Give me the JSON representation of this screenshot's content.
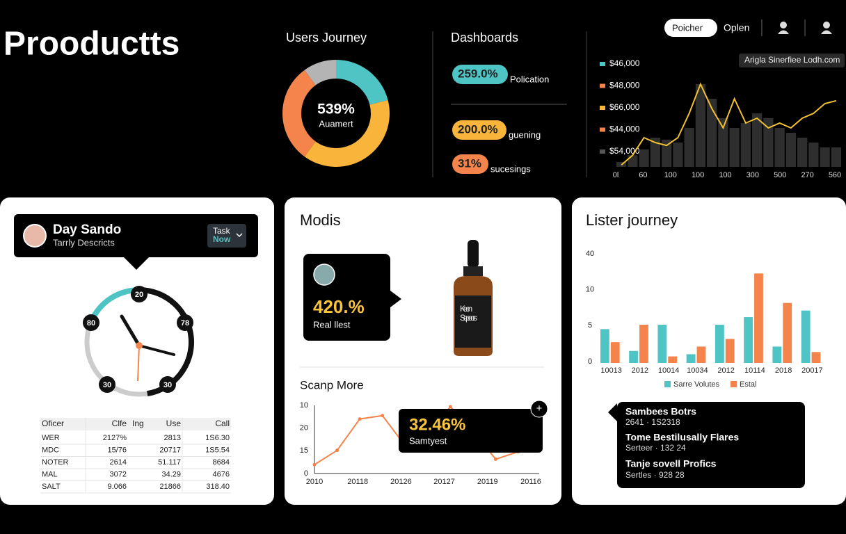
{
  "header": {
    "title": "Prooductts",
    "button": "Poicher",
    "link": "Oplen"
  },
  "donut": {
    "title": "Users Journey",
    "center_value": "539%",
    "center_label": "Auamert",
    "segments": [
      {
        "value": 21,
        "color": "#4fc4c4"
      },
      {
        "value": 39,
        "color": "#f9b43c"
      },
      {
        "value": 30,
        "color": "#f4844c"
      },
      {
        "value": 10,
        "color": "#b4b4b4"
      }
    ]
  },
  "dashboards": {
    "title": "Dashboards",
    "items": [
      {
        "value": "259.0%",
        "label": "Polication",
        "color": "#4fc4c4"
      },
      {
        "value": "200.0%",
        "label": "guening",
        "color": "#f9b43c"
      },
      {
        "value": "31%",
        "label": "sucesings",
        "color": "#f4844c"
      }
    ]
  },
  "top_chart": {
    "badge": "Arigla Sinerfiee Lodh.com",
    "legend": [
      {
        "label": "$46,000",
        "color": "#4fc4c4"
      },
      {
        "label": "$48,000",
        "color": "#f4844c"
      },
      {
        "label": "$66,000",
        "color": "#f9b43c"
      },
      {
        "label": "$44,000",
        "color": "#f4844c"
      },
      {
        "label": "$54,000",
        "color": "#555555"
      }
    ],
    "x_labels": [
      "0l",
      "60",
      "100",
      "100",
      "100",
      "300",
      "500",
      "270",
      "560"
    ],
    "ylim": [
      0,
      100
    ],
    "bars": [
      5,
      12,
      18,
      30,
      28,
      25,
      40,
      85,
      70,
      50,
      40,
      45,
      55,
      50,
      40,
      35,
      30,
      25,
      20,
      20
    ],
    "line": [
      2,
      12,
      30,
      25,
      22,
      30,
      55,
      85,
      60,
      40,
      70,
      45,
      50,
      40,
      45,
      40,
      50,
      55,
      65,
      68
    ]
  },
  "profile_card": {
    "name": "Day Sando",
    "subtitle": "Tarrly Descricts",
    "task": "Task",
    "status": "Now",
    "clock_labels": [
      "20",
      "80",
      "78",
      "30",
      "30"
    ],
    "table": {
      "headers": [
        "Oficer",
        "Clfe",
        "Ing",
        "Use",
        "Call"
      ],
      "rows": [
        [
          "WER",
          "2127%",
          "2813",
          "1S6.30"
        ],
        [
          "MDC",
          "15/76",
          "20717",
          "1S5.54"
        ],
        [
          "NOTER",
          "2614",
          "51.117",
          "8684"
        ],
        [
          "MAL",
          "3072",
          "34.29",
          "4676"
        ],
        [
          "SALT",
          "9.066",
          "21866",
          "318.40"
        ]
      ]
    }
  },
  "modis_card": {
    "title": "Modis",
    "metric": "420.%",
    "metric_label": "Real llest",
    "product_label": "Keen Sepoors",
    "chart": {
      "title": "Scanp More",
      "y_labels": [
        "10",
        "20",
        "15",
        "0"
      ],
      "x_labels": [
        "2010",
        "20118",
        "20126",
        "20127",
        "20119",
        "20116"
      ],
      "ylim": [
        0,
        100
      ],
      "values": [
        13,
        34,
        80,
        85,
        41,
        56,
        98,
        62,
        21,
        32
      ],
      "tooltip": {
        "value": "32.46%",
        "label": "Samtyest",
        "button": "+"
      }
    }
  },
  "lister_card": {
    "title": "Lister journey",
    "y_labels": [
      "40",
      "10",
      "5",
      "0"
    ],
    "categories": [
      "10013",
      "2012",
      "10014",
      "10034",
      "2012",
      "10114",
      "2018",
      "20017"
    ],
    "ylim": [
      0,
      100
    ],
    "series": [
      {
        "name": "Sarre Volutes",
        "color": "#4fc4c4",
        "values": [
          31,
          11,
          35,
          8,
          35,
          42,
          15,
          48
        ]
      },
      {
        "name": "Estal",
        "color": "#f4844c",
        "values": [
          19,
          35,
          6,
          15,
          22,
          82,
          55,
          10
        ]
      }
    ],
    "tooltip": [
      {
        "title": "Sambees Botrs",
        "detail": "2641 · 1S2318"
      },
      {
        "title": "Tome Bestilusally Flares",
        "detail": "Serteer · 132 24"
      },
      {
        "title": "Tanje sovell Profics",
        "detail": "Sertles · 928 28"
      }
    ]
  }
}
